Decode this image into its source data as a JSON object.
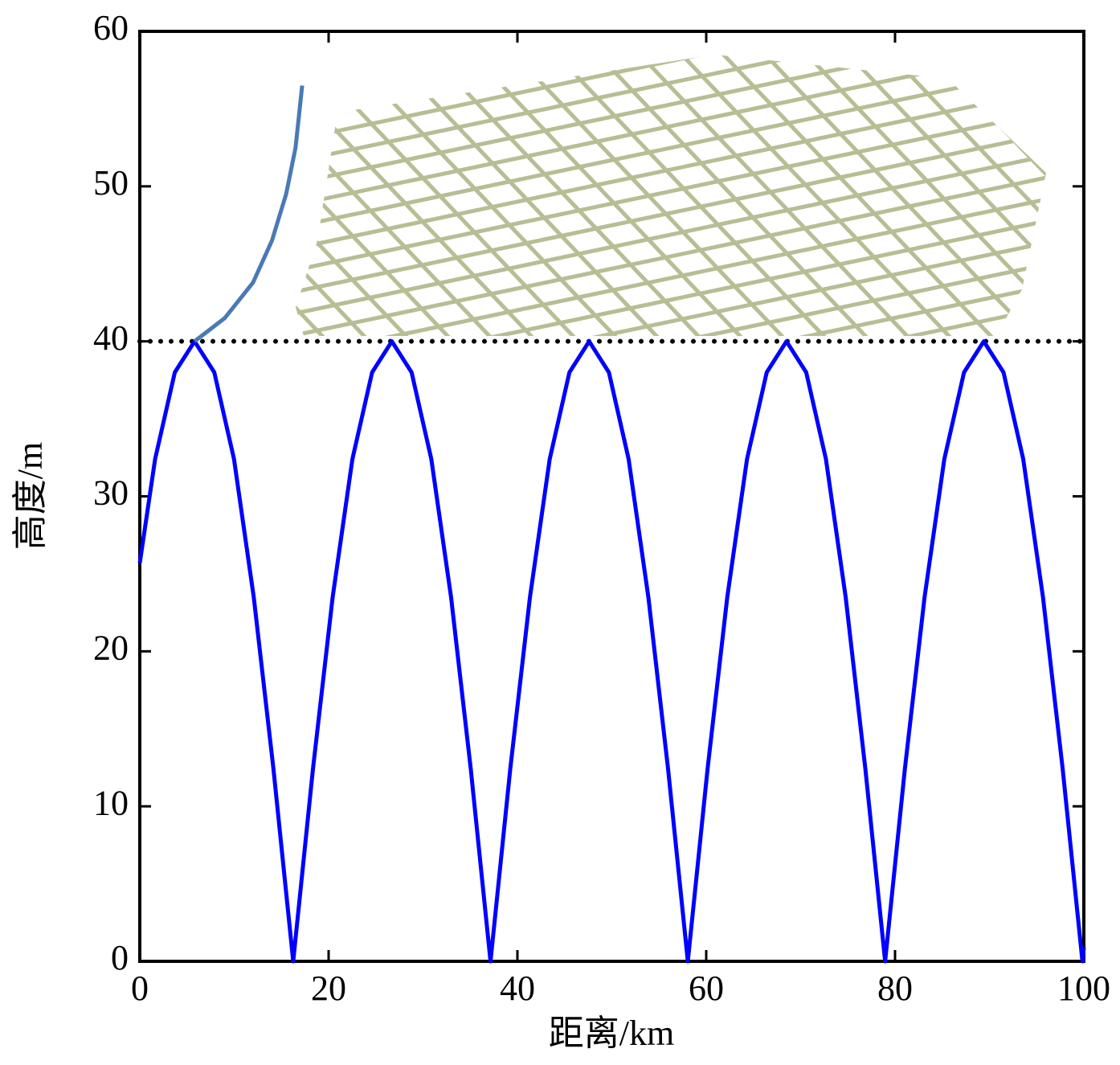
{
  "chart_data": {
    "type": "line",
    "x_label": "距离/km",
    "y_label": "高度/m",
    "xlim": [
      0,
      100
    ],
    "ylim": [
      0,
      60
    ],
    "xticks": [
      0,
      20,
      40,
      60,
      80,
      100
    ],
    "yticks": [
      0,
      10,
      20,
      30,
      40,
      50,
      60
    ],
    "reference_line": {
      "y": 40,
      "color": "#000000"
    },
    "series": [
      {
        "color": "#0000ff",
        "x": [
          0,
          1.62,
          3.71,
          5.8,
          7.89,
          9.98,
          12.07,
          14.16,
          16.25,
          18.34,
          20.43,
          22.52,
          24.61,
          26.7,
          28.79,
          30.88,
          32.97,
          35.06,
          37.15,
          39.24,
          41.33,
          43.42,
          45.51,
          47.6,
          49.69,
          51.78,
          53.87,
          55.96,
          58.05,
          60.14,
          62.23,
          64.32,
          66.41,
          68.5,
          70.59,
          72.68,
          74.77,
          76.86,
          78.95,
          81.04,
          83.13,
          85.22,
          87.31,
          89.4,
          91.49,
          93.58,
          95.67,
          97.76,
          99.85,
          100
        ],
        "values": [
          25.7,
          32.4,
          38,
          40,
          38,
          32.4,
          23.5,
          12.4,
          0,
          12.4,
          23.5,
          32.4,
          38,
          40,
          38,
          32.4,
          23.5,
          12.4,
          0,
          12.4,
          23.5,
          32.4,
          38,
          40,
          38,
          32.4,
          23.5,
          12.4,
          0,
          12.4,
          23.5,
          32.4,
          38,
          40,
          38,
          32.4,
          23.5,
          12.4,
          0,
          12.4,
          23.5,
          32.4,
          38,
          40,
          38,
          32.4,
          23.5,
          12.4,
          0,
          0.9
        ]
      },
      {
        "color": "#4a7ab5",
        "x": [
          5.8,
          9,
          12,
          14,
          15.5,
          16.5,
          17.2
        ],
        "values": [
          40,
          41.5,
          43.8,
          46.5,
          49.5,
          52.5,
          56.5
        ]
      }
    ]
  }
}
